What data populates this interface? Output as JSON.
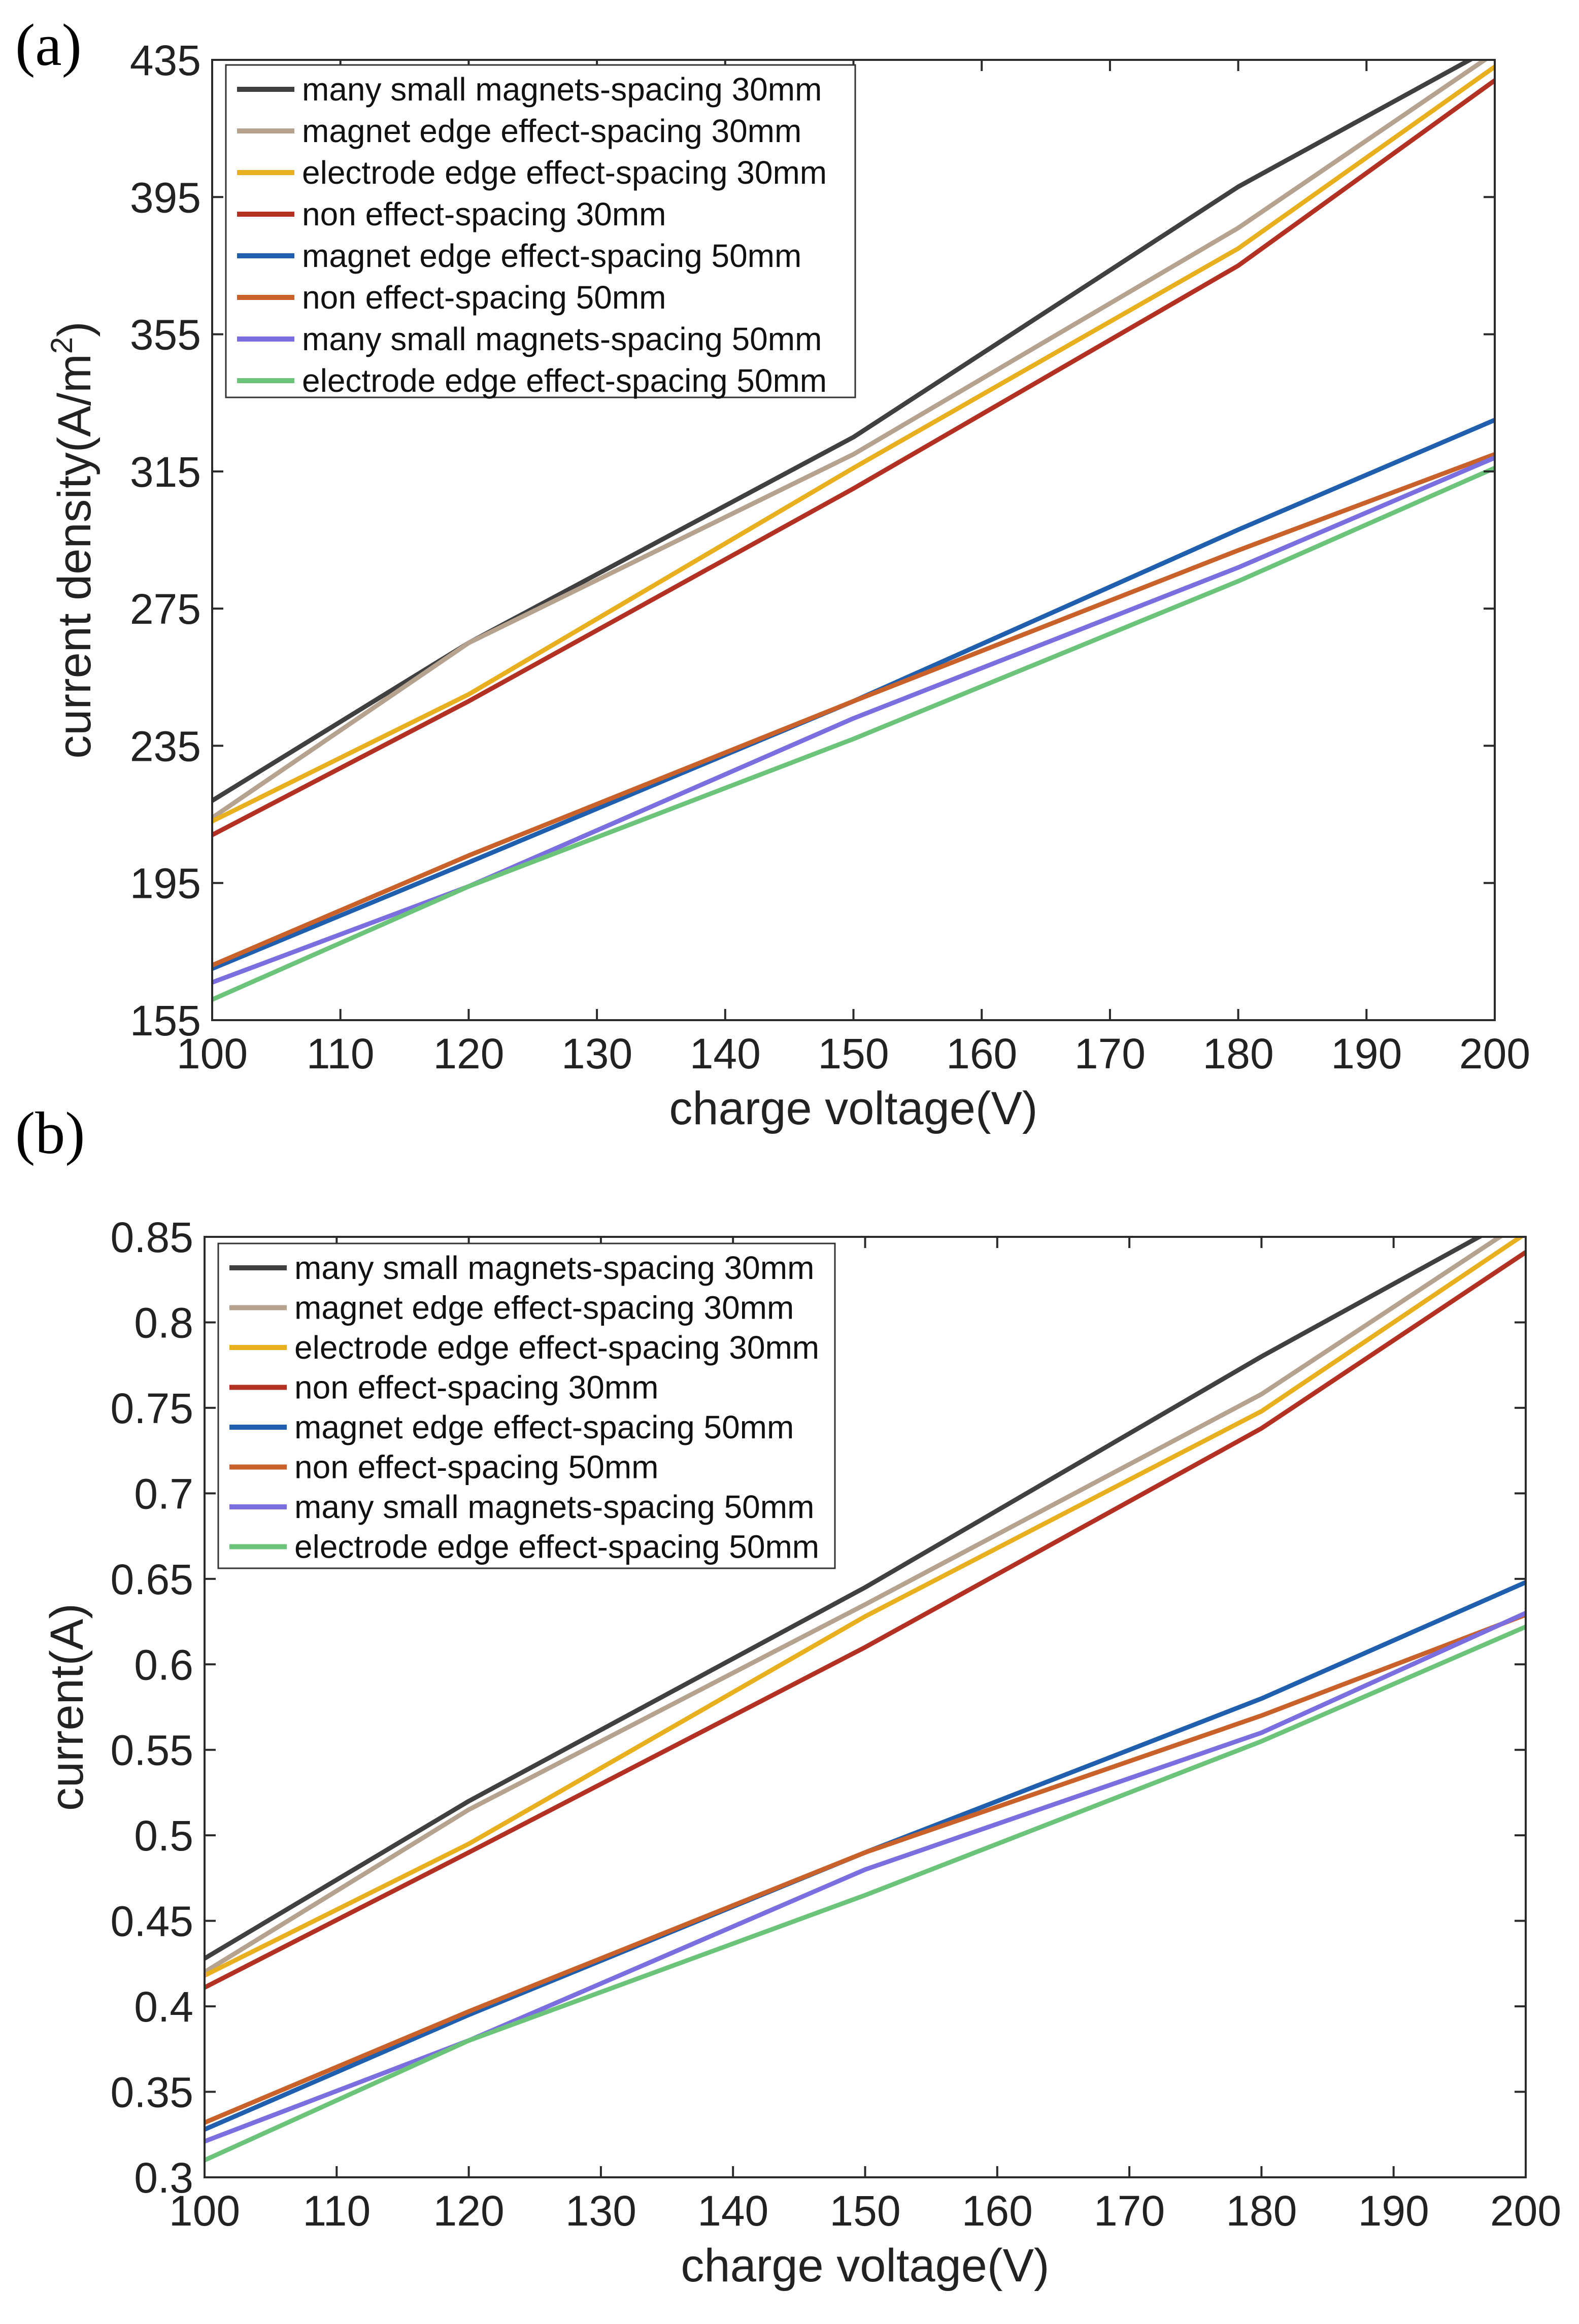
{
  "chart_data": [
    {
      "panel": "(a)",
      "type": "line",
      "title": "",
      "xlabel": "charge voltage(V)",
      "ylabel": "current density(A/m",
      "ylabel_sup": "2",
      "ylabel_end": ")",
      "xlim": [
        100,
        200
      ],
      "ylim": [
        155,
        435
      ],
      "xticks": [
        100,
        110,
        120,
        130,
        140,
        150,
        160,
        170,
        180,
        190,
        200
      ],
      "yticks": [
        155,
        195,
        235,
        275,
        315,
        355,
        395,
        435
      ],
      "x": [
        100,
        120,
        150,
        180,
        200
      ],
      "legend_position": "top-left",
      "series": [
        {
          "name": "many small magnets-spacing 30mm",
          "color": "#404040",
          "values": [
            219,
            265,
            325,
            398,
            439
          ]
        },
        {
          "name": "magnet edge effect-spacing 30mm",
          "color": "#b5a28f",
          "values": [
            214,
            265,
            320,
            386,
            437
          ]
        },
        {
          "name": "electrode edge effect-spacing 30mm",
          "color": "#e8b01f",
          "values": [
            213,
            250,
            316,
            380,
            433
          ]
        },
        {
          "name": "non effect-spacing 30mm",
          "color": "#b33123",
          "values": [
            209,
            248,
            310,
            375,
            429
          ]
        },
        {
          "name": "magnet edge effect-spacing 50mm",
          "color": "#1f5fae",
          "values": [
            170,
            201,
            248,
            298,
            330
          ]
        },
        {
          "name": "non effect-spacing 50mm",
          "color": "#c9612b",
          "values": [
            171,
            203,
            248,
            292,
            320
          ]
        },
        {
          "name": "many small magnets-spacing 50mm",
          "color": "#7b6fe0",
          "values": [
            166,
            194,
            243,
            287,
            319
          ]
        },
        {
          "name": "electrode edge effect-spacing 50mm",
          "color": "#6cc47a",
          "values": [
            161,
            194,
            237,
            283,
            316
          ]
        }
      ]
    },
    {
      "panel": "(b)",
      "type": "line",
      "title": "",
      "xlabel": "charge voltage(V)",
      "ylabel": "current(A)",
      "xlim": [
        100,
        200
      ],
      "ylim": [
        0.3,
        0.85
      ],
      "xticks": [
        100,
        110,
        120,
        130,
        140,
        150,
        160,
        170,
        180,
        190,
        200
      ],
      "yticks": [
        "0.3",
        "0.35",
        "0.4",
        "0.45",
        "0.5",
        "0.55",
        "0.6",
        "0.65",
        "0.7",
        "0.75",
        "0.8",
        "0.85"
      ],
      "x": [
        100,
        120,
        150,
        180,
        200
      ],
      "legend_position": "top-left",
      "series": [
        {
          "name": "many small magnets-spacing 30mm",
          "color": "#404040",
          "values": [
            0.428,
            0.52,
            0.645,
            0.78,
            0.865
          ]
        },
        {
          "name": "magnet edge effect-spacing 30mm",
          "color": "#b5a28f",
          "values": [
            0.42,
            0.515,
            0.635,
            0.758,
            0.86
          ]
        },
        {
          "name": "electrode edge effect-spacing 30mm",
          "color": "#e8b01f",
          "values": [
            0.418,
            0.495,
            0.628,
            0.748,
            0.852
          ]
        },
        {
          "name": "non effect-spacing 30mm",
          "color": "#b33123",
          "values": [
            0.411,
            0.49,
            0.61,
            0.738,
            0.841
          ]
        },
        {
          "name": "magnet edge effect-spacing 50mm",
          "color": "#1f5fae",
          "values": [
            0.328,
            0.395,
            0.49,
            0.58,
            0.648
          ]
        },
        {
          "name": "non effect-spacing 50mm",
          "color": "#c9612b",
          "values": [
            0.332,
            0.397,
            0.49,
            0.57,
            0.629
          ]
        },
        {
          "name": "many small magnets-spacing 50mm",
          "color": "#7b6fe0",
          "values": [
            0.321,
            0.38,
            0.48,
            0.56,
            0.63
          ]
        },
        {
          "name": "electrode edge effect-spacing 50mm",
          "color": "#6cc47a",
          "values": [
            0.31,
            0.38,
            0.465,
            0.555,
            0.622
          ]
        }
      ]
    }
  ]
}
